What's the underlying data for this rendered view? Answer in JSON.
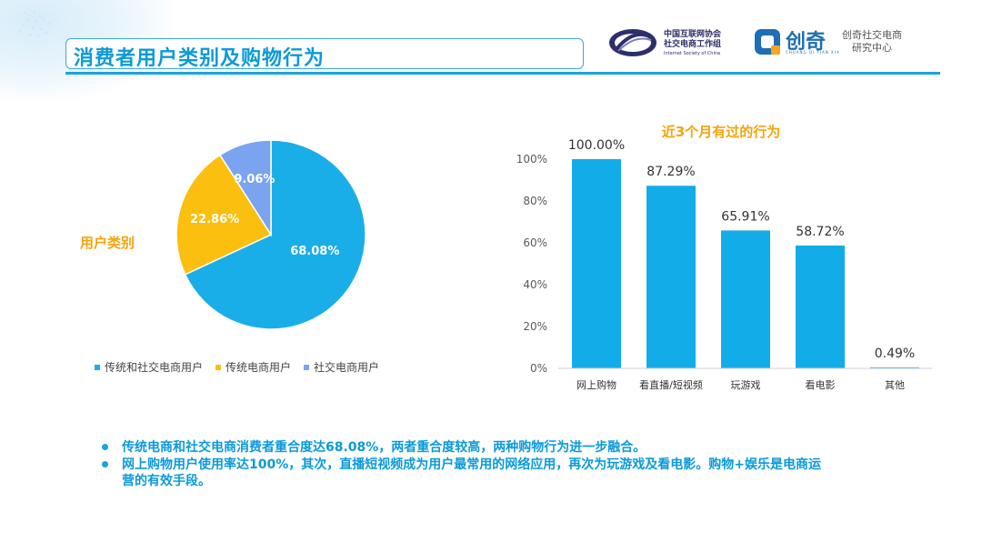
{
  "header": {
    "title": "消费者用户类别及购物行为",
    "logo_left_line1": "中国互联网协会",
    "logo_left_line2": "社交电商工作组",
    "logo_left_sub": "Internet Society of China",
    "logo_right_word": "创奇",
    "logo_right_sub": "CHUANG QI TIAN XIA",
    "logo_right_line1": "创奇社交电商",
    "logo_right_line2": "研究中心"
  },
  "chart_data": [
    {
      "type": "pie",
      "side_label": "用户类别",
      "slices": [
        {
          "label": "传统和社交电商用户",
          "value": 68.08,
          "display": "68.08%",
          "color": "#1aaee8"
        },
        {
          "label": "传统电商用户",
          "value": 22.86,
          "display": "22.86%",
          "color": "#fbbf0f"
        },
        {
          "label": "社交电商用户",
          "value": 9.06,
          "display": "9.06%",
          "color": "#7aa3f0"
        }
      ],
      "legend_position": "bottom"
    },
    {
      "type": "bar",
      "title": "近3个月有过的行为",
      "categories": [
        "网上购物",
        "看直播/短视频",
        "玩游戏",
        "看电影",
        "其他"
      ],
      "values": [
        100.0,
        87.29,
        65.91,
        58.72,
        0.49
      ],
      "data_labels": [
        "100.00%",
        "87.29%",
        "65.91%",
        "58.72%",
        "0.49%"
      ],
      "yticks": [
        "0%",
        "20%",
        "40%",
        "60%",
        "80%",
        "100%"
      ],
      "ylim": [
        0,
        100
      ],
      "grid": false,
      "bar_color": "#12ade8"
    }
  ],
  "notes": [
    "传统电商和社交电商消费者重合度达68.08%，两者重合度较高，两种购物行为进一步融合。",
    "网上购物用户使用率达100%，其次，直播短视频成为用户最常用的网络应用，再次为玩游戏及看电影。购物+娱乐是电商运营的有效手段。"
  ]
}
